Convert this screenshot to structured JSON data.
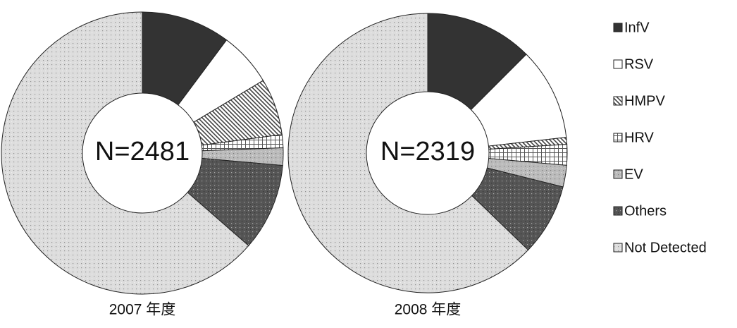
{
  "chart_data": [
    {
      "type": "pie",
      "center_label": "N=2481",
      "caption": "2007 年度",
      "categories": [
        "InfV",
        "RSV",
        "HMPV",
        "HRV",
        "EV",
        "Others",
        "Not Detected"
      ],
      "values": [
        10.2,
        6.2,
        6.5,
        1.5,
        2,
        10,
        63.6
      ],
      "colors": [
        "#333333",
        "#ffffff",
        "#444444",
        "#555555",
        "#bbbbbb",
        "#555555",
        "#dddddd"
      ],
      "patterns": [
        "solid",
        "solid",
        "hatch",
        "grid",
        "dots",
        "dots",
        "dots"
      ]
    },
    {
      "type": "pie",
      "center_label": "N=2319",
      "caption": "2008 年度",
      "categories": [
        "InfV",
        "RSV",
        "HMPV",
        "HRV",
        "EV",
        "Others",
        "Not Detected"
      ],
      "values": [
        12.5,
        10.7,
        0.8,
        2.4,
        2.5,
        8.3,
        62.8
      ],
      "colors": [
        "#333333",
        "#ffffff",
        "#444444",
        "#555555",
        "#bbbbbb",
        "#555555",
        "#dddddd"
      ],
      "patterns": [
        "solid",
        "solid",
        "hatch",
        "grid",
        "dots",
        "dots",
        "dots"
      ]
    }
  ]
}
